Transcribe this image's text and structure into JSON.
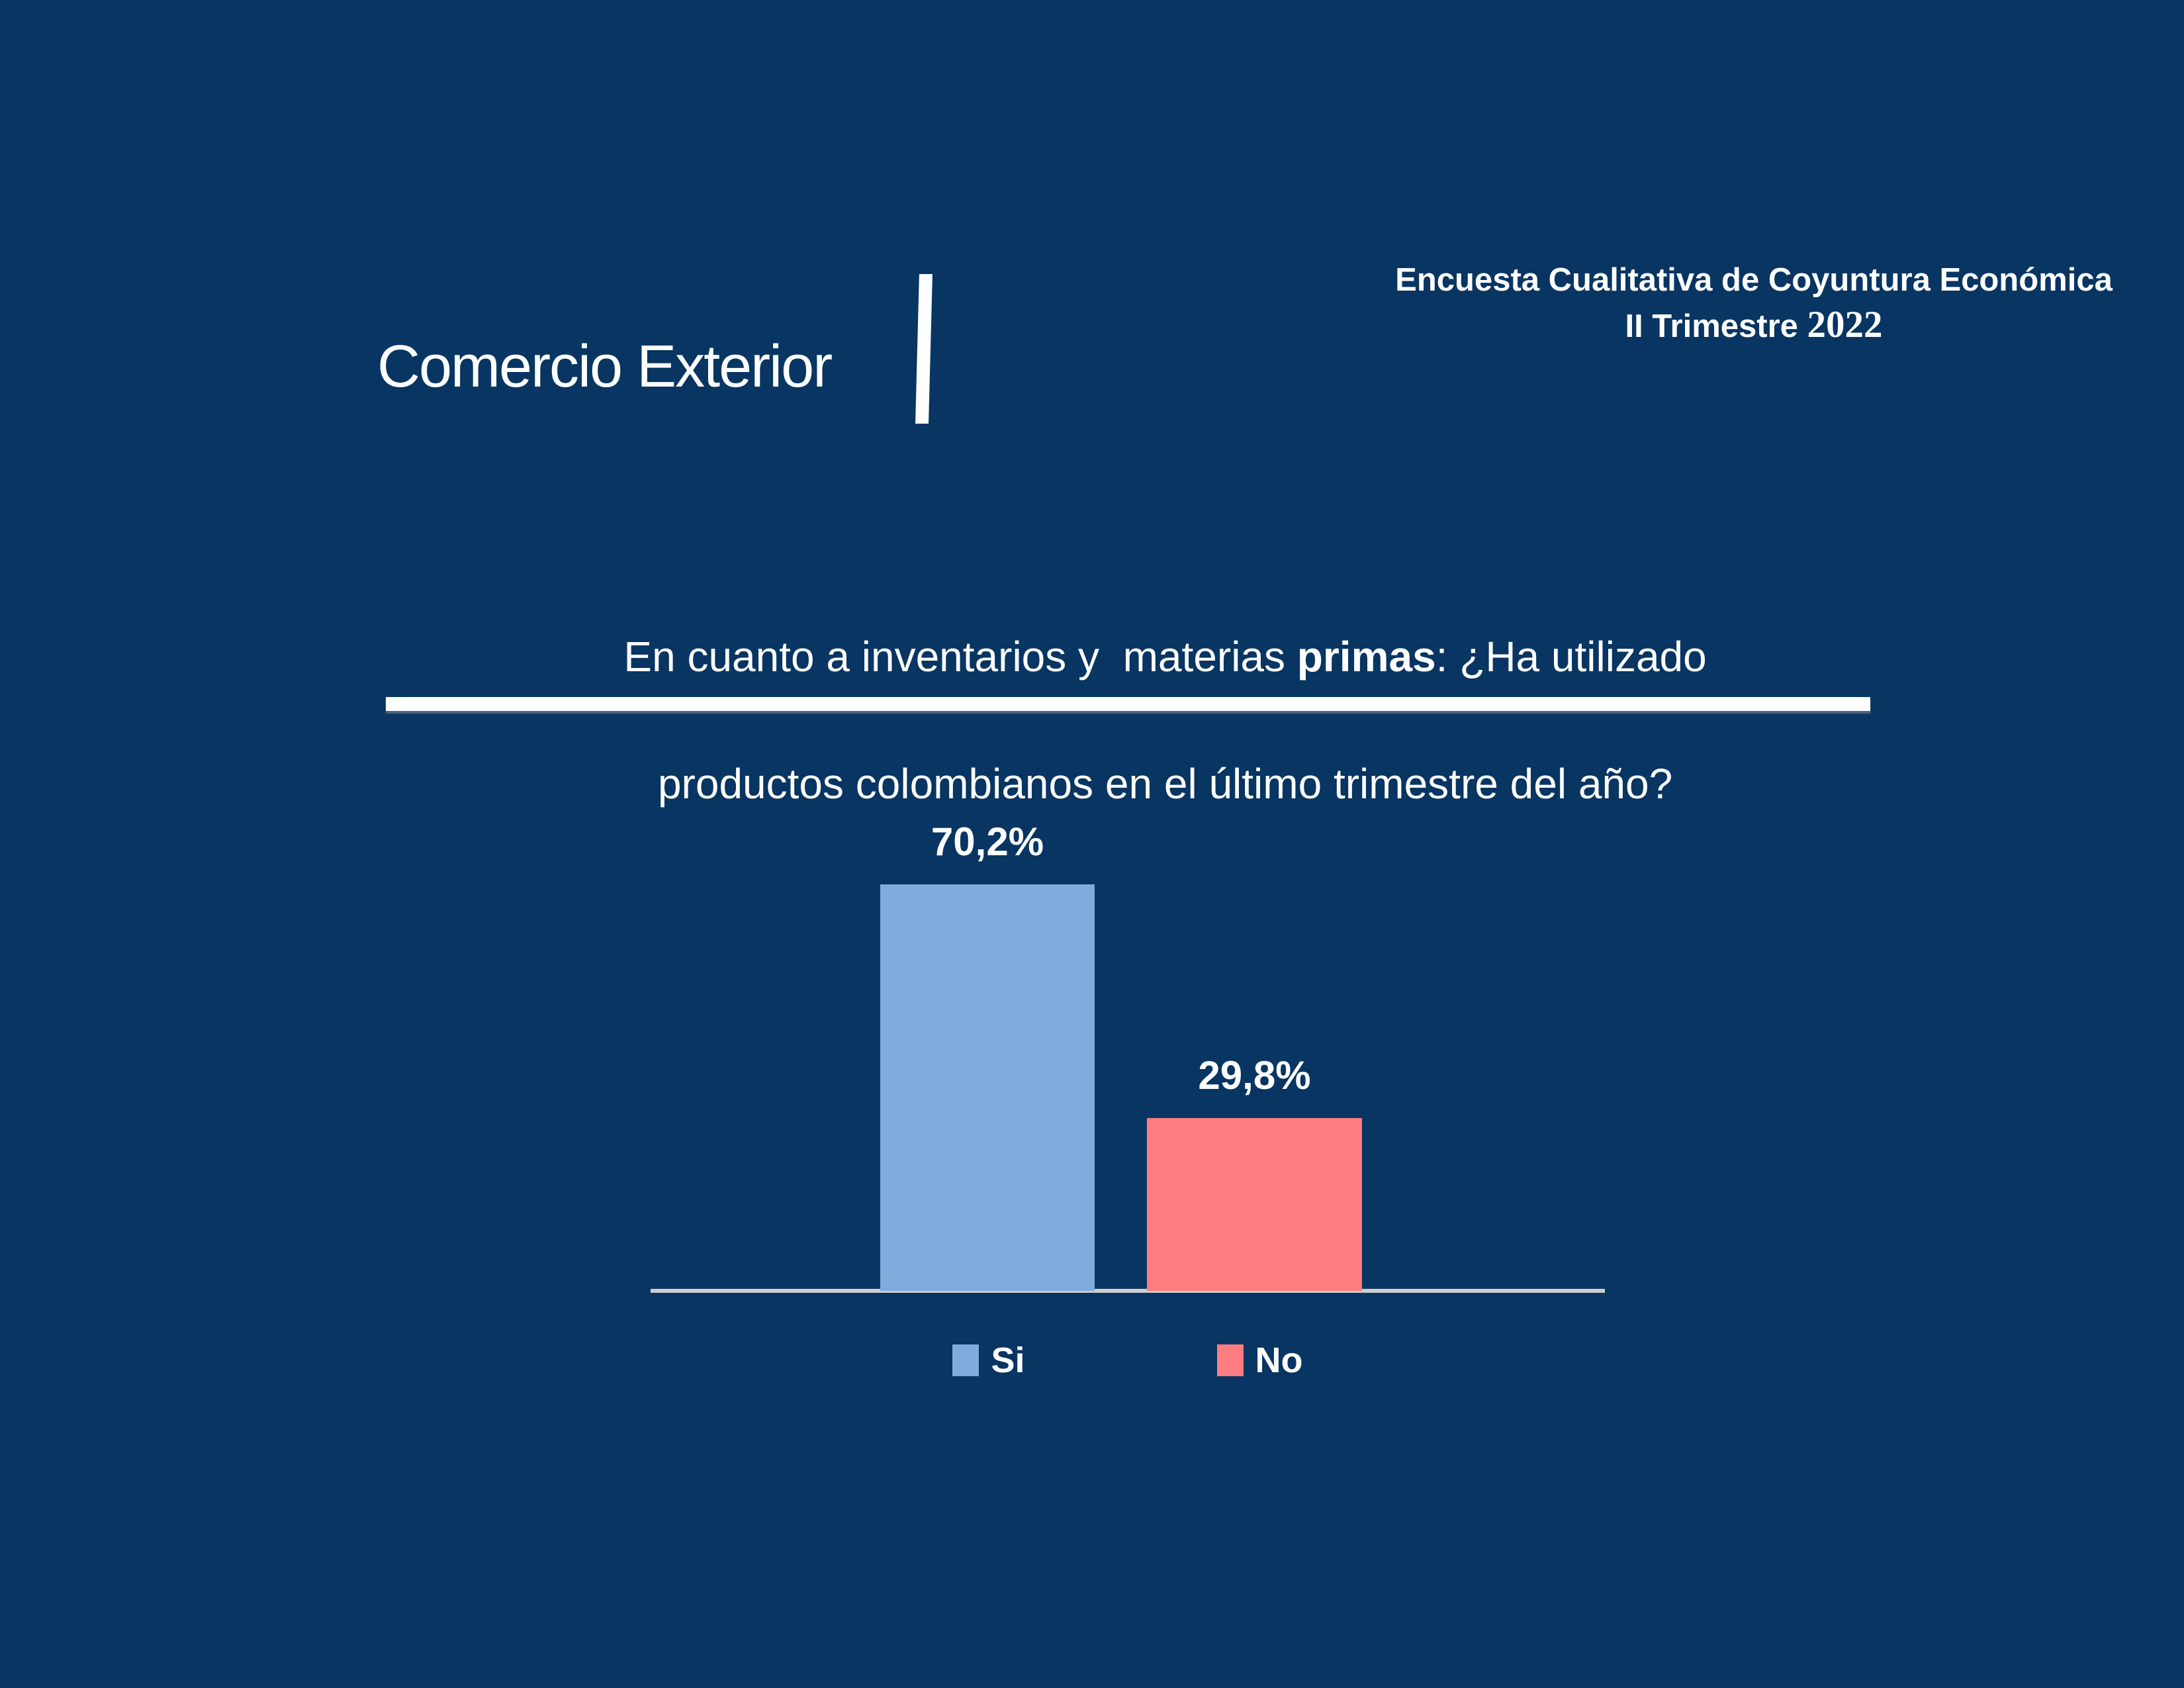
{
  "slide": {
    "background_color": "#083562",
    "title": "Comercio Exterior",
    "header": {
      "line1": "Encuesta Cualitativa de Coyuntura Económica",
      "line2_prefix": "II Trimestre",
      "line2_year": "2022"
    },
    "question": {
      "line1_pre": "En cuanto a inventarios y  materias ",
      "line1_bold": "primas",
      "line1_post": ": ¿Ha utilizado",
      "line2": "productos colombianos en el último trimestre del año?"
    }
  },
  "chart_data": {
    "type": "bar",
    "title": "",
    "categories": [
      "Si",
      "No"
    ],
    "values": [
      70.2,
      29.8
    ],
    "value_labels": [
      "70,2%",
      "29,8%"
    ],
    "series_colors": [
      "#7FABDD",
      "#FD7D81"
    ],
    "axis_line_color": "#CFCDCD",
    "value_label_color": "#FFFFFF",
    "ylim": [
      0,
      100
    ],
    "grid": false,
    "legend_position": "bottom",
    "legend": [
      {
        "label": "Si",
        "color": "#7FABDD"
      },
      {
        "label": "No",
        "color": "#FD7D81"
      }
    ]
  }
}
